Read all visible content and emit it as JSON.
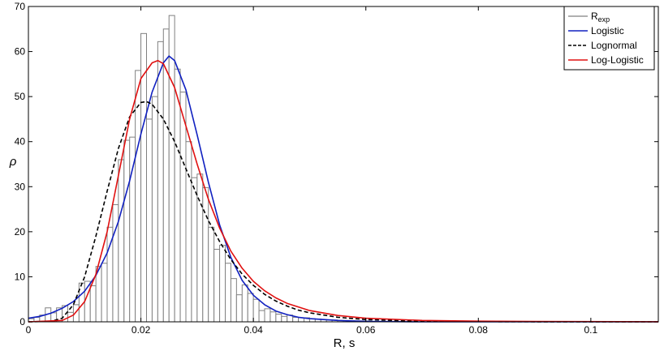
{
  "chart_data": {
    "type": "bar",
    "xlabel": "R, s",
    "ylabel": "ρ",
    "xlim": [
      0,
      0.112
    ],
    "ylim": [
      0,
      70
    ],
    "xticks": [
      0,
      0.02,
      0.04,
      0.06,
      0.08,
      0.1
    ],
    "xtick_labels": [
      "0",
      "0.02",
      "0.04",
      "0.06",
      "0.08",
      "0.1"
    ],
    "yticks": [
      0,
      10,
      20,
      30,
      40,
      50,
      60,
      70
    ],
    "ytick_labels": [
      "0",
      "10",
      "20",
      "30",
      "40",
      "50",
      "60",
      "70"
    ],
    "grid": false,
    "legend_position": "top-right",
    "legend": [
      {
        "label": "R",
        "sub": "exp",
        "style": "histogram",
        "color": "#808080"
      },
      {
        "label": "Logistic",
        "style": "solid",
        "color": "#1020c0"
      },
      {
        "label": "Lognormal",
        "style": "dashed",
        "color": "#000000"
      },
      {
        "label": "Log-Logistic",
        "style": "solid",
        "color": "#e01010"
      }
    ],
    "histogram": {
      "name": "R_exp",
      "bin_width": 0.001,
      "bin_starts": [
        0.0,
        0.001,
        0.002,
        0.003,
        0.004,
        0.005,
        0.006,
        0.007,
        0.008,
        0.009,
        0.01,
        0.011,
        0.012,
        0.013,
        0.014,
        0.015,
        0.016,
        0.017,
        0.018,
        0.019,
        0.02,
        0.021,
        0.022,
        0.023,
        0.024,
        0.025,
        0.026,
        0.027,
        0.028,
        0.029,
        0.03,
        0.031,
        0.032,
        0.033,
        0.034,
        0.035,
        0.036,
        0.037,
        0.038,
        0.039,
        0.04,
        0.041,
        0.042,
        0.043,
        0.044,
        0.045,
        0.046,
        0.047,
        0.048,
        0.049,
        0.05,
        0.051,
        0.052,
        0.053,
        0.054,
        0.055,
        0.056,
        0.057,
        0.058,
        0.059,
        0.06
      ],
      "values": [
        0.7,
        1.0,
        1.5,
        3.1,
        2.0,
        3.1,
        3.6,
        2.1,
        3.8,
        8.6,
        9.0,
        8.0,
        12.3,
        13.0,
        21.0,
        26.0,
        36.0,
        40.3,
        41.0,
        55.8,
        64.0,
        45.0,
        50.0,
        62.2,
        65.0,
        68.0,
        56.1,
        51.0,
        40.0,
        32.0,
        32.8,
        29.8,
        21.0,
        16.1,
        17.0,
        13.0,
        9.6,
        6.0,
        8.2,
        6.3,
        5.0,
        2.5,
        2.9,
        2.2,
        1.7,
        1.2,
        1.5,
        1.0,
        0.9,
        0.9,
        0.7,
        0.6,
        0.5,
        0.4,
        0.4,
        0.3,
        0.3,
        0.2,
        0.2,
        0.2,
        0.2
      ]
    },
    "series": [
      {
        "name": "Logistic",
        "x": [
          0,
          0.002,
          0.004,
          0.006,
          0.008,
          0.01,
          0.012,
          0.014,
          0.016,
          0.018,
          0.02,
          0.022,
          0.024,
          0.025,
          0.026,
          0.028,
          0.03,
          0.032,
          0.034,
          0.036,
          0.038,
          0.04,
          0.042,
          0.044,
          0.046,
          0.048,
          0.05,
          0.055,
          0.06,
          0.07,
          0.08,
          0.112
        ],
        "y": [
          0.8,
          1.2,
          1.9,
          3.0,
          4.5,
          6.8,
          10.3,
          15.3,
          22.3,
          31.3,
          41.7,
          51.0,
          57.5,
          59.0,
          58.0,
          51.5,
          41.5,
          31.0,
          21.5,
          14.3,
          9.2,
          5.9,
          3.8,
          2.4,
          1.6,
          1.0,
          0.7,
          0.3,
          0.1,
          0.0,
          0.0,
          0.0
        ]
      },
      {
        "name": "Lognormal",
        "x": [
          0,
          0.004,
          0.006,
          0.008,
          0.01,
          0.012,
          0.014,
          0.016,
          0.018,
          0.02,
          0.021,
          0.022,
          0.024,
          0.026,
          0.028,
          0.03,
          0.032,
          0.034,
          0.036,
          0.038,
          0.04,
          0.042,
          0.044,
          0.046,
          0.048,
          0.05,
          0.055,
          0.06,
          0.065,
          0.07,
          0.08,
          0.09,
          0.112
        ],
        "y": [
          0,
          0.1,
          0.8,
          3.8,
          10.0,
          19.0,
          29.0,
          38.5,
          45.5,
          48.7,
          48.9,
          48.3,
          45.0,
          40.0,
          34.0,
          28.0,
          22.5,
          17.8,
          13.8,
          10.6,
          8.1,
          6.1,
          4.6,
          3.5,
          2.6,
          2.0,
          1.0,
          0.5,
          0.3,
          0.15,
          0.05,
          0.02,
          0.0
        ]
      },
      {
        "name": "Log-Logistic",
        "x": [
          0,
          0.006,
          0.008,
          0.01,
          0.012,
          0.014,
          0.016,
          0.018,
          0.02,
          0.022,
          0.023,
          0.024,
          0.026,
          0.028,
          0.03,
          0.032,
          0.034,
          0.036,
          0.038,
          0.04,
          0.042,
          0.044,
          0.046,
          0.05,
          0.055,
          0.06,
          0.07,
          0.08,
          0.09,
          0.112
        ],
        "y": [
          0,
          0.3,
          1.5,
          4.5,
          10.5,
          20.0,
          32.5,
          45.0,
          54.0,
          57.5,
          58.0,
          57.3,
          52.0,
          43.5,
          35.0,
          27.2,
          20.8,
          15.7,
          11.9,
          9.0,
          6.9,
          5.3,
          4.1,
          2.5,
          1.4,
          0.8,
          0.3,
          0.15,
          0.07,
          0.02
        ]
      }
    ]
  }
}
